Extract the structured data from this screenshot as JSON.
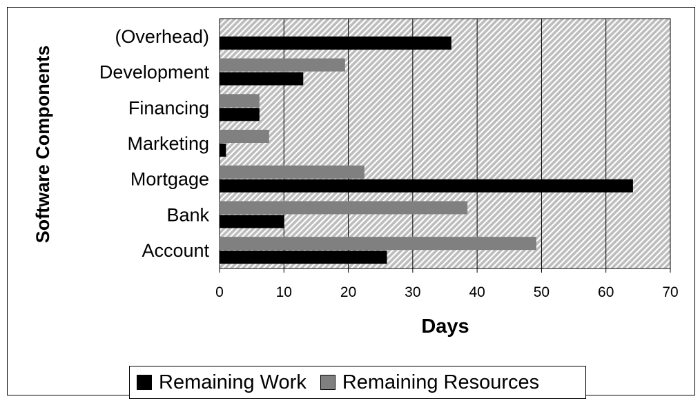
{
  "chart_data": {
    "type": "bar",
    "orientation": "horizontal",
    "title": "",
    "xlabel": "Days",
    "ylabel": "Software Components",
    "xlim": [
      0,
      70
    ],
    "xticks": [
      0,
      10,
      20,
      30,
      40,
      50,
      60,
      70
    ],
    "grid": "vertical",
    "plot_background": "diagonal-hatch",
    "legend_position": "bottom",
    "categories": [
      "(Overhead)",
      "Development",
      "Financing",
      "Marketing",
      "Mortgage",
      "Bank",
      "Account"
    ],
    "series": [
      {
        "name": "Remaining Work",
        "color": "#000000",
        "values": [
          36,
          13,
          6.2,
          1,
          64.2,
          10,
          26
        ]
      },
      {
        "name": "Remaining Resources",
        "color": "#808080",
        "values": [
          0,
          19.5,
          6.2,
          7.7,
          22.5,
          38.5,
          49.2
        ]
      }
    ]
  }
}
